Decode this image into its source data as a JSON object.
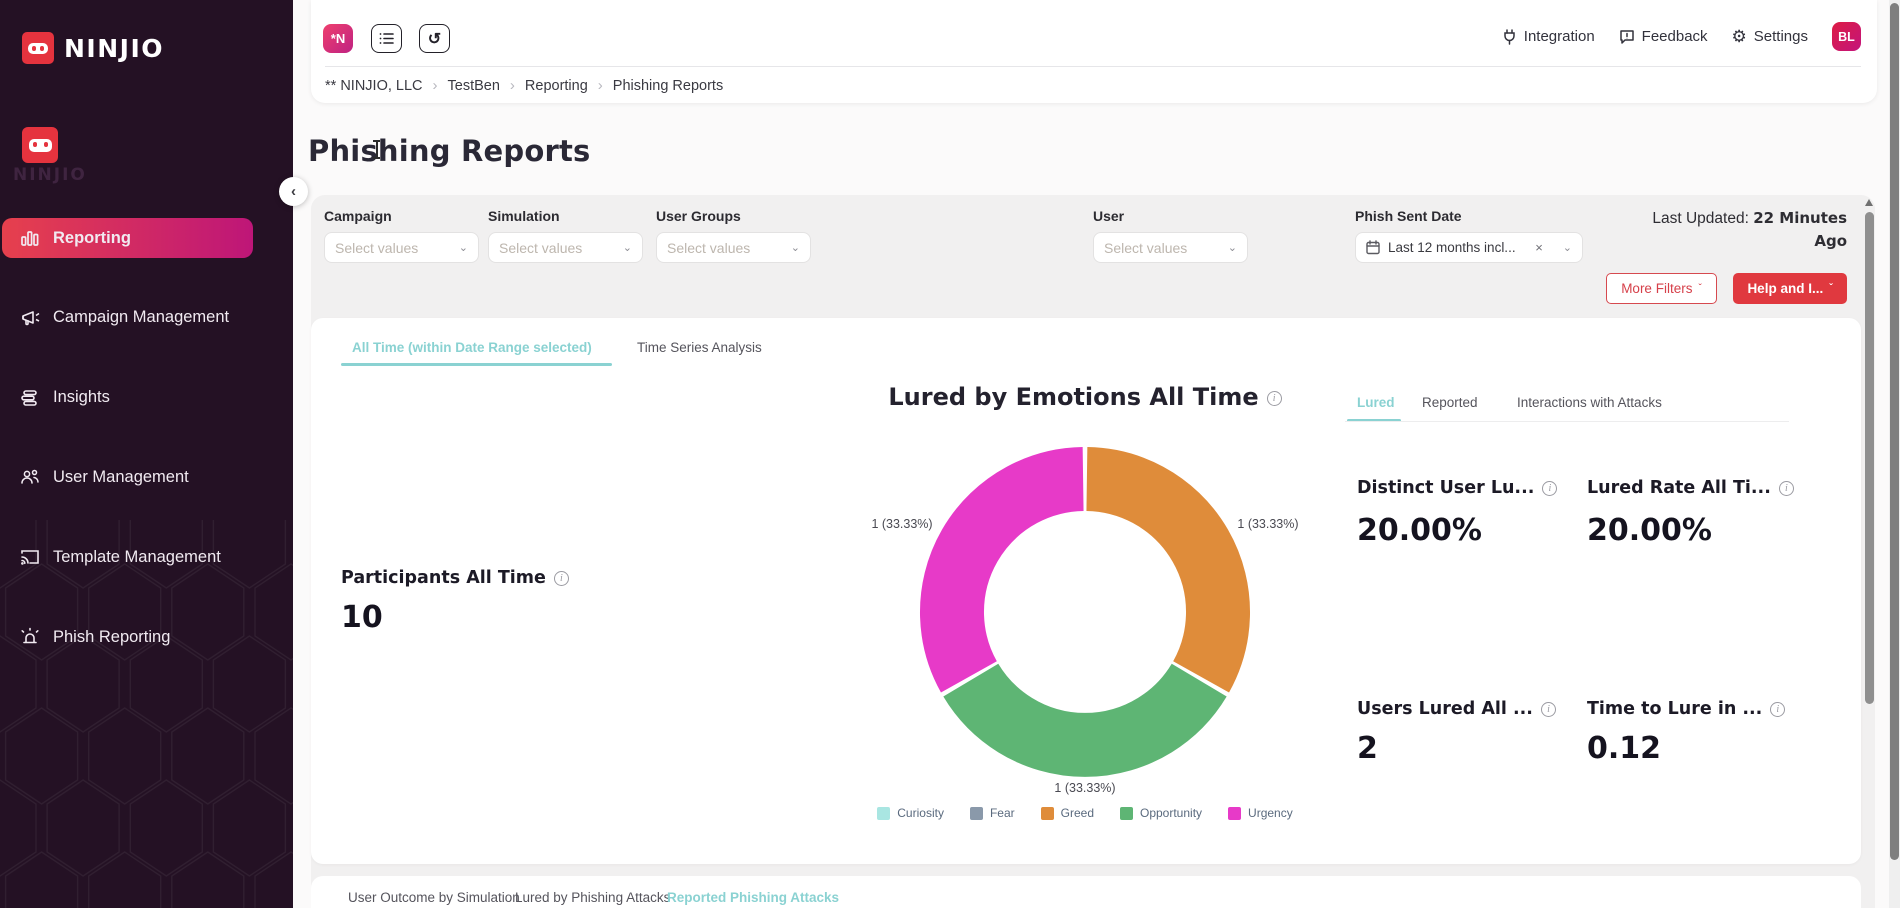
{
  "colors": {
    "accent_teal": "#8ad2d2",
    "brand_red": "#e5333e",
    "button_red": "#e0393f",
    "sidebar_bg": "#241124",
    "active_gradient": [
      "#e6404d",
      "#be1678"
    ]
  },
  "sidebar": {
    "brand": "NINJIO",
    "watermark": "NINJIO",
    "collapse_icon": "chevron-left-icon",
    "items": [
      {
        "label": "Reporting",
        "icon": "bar-chart-icon",
        "active": true
      },
      {
        "label": "Campaign Management",
        "icon": "megaphone-icon",
        "active": false
      },
      {
        "label": "Insights",
        "icon": "insights-icon",
        "active": false
      },
      {
        "label": "User Management",
        "icon": "users-icon",
        "active": false
      },
      {
        "label": "Template Management",
        "icon": "cast-icon",
        "active": false
      },
      {
        "label": "Phish Reporting",
        "icon": "siren-icon",
        "active": false
      }
    ]
  },
  "header": {
    "workspace_badge": "*N",
    "toolbar_icons": [
      "list-icon",
      "undo-icon"
    ],
    "breadcrumb": [
      "** NINJIO, LLC",
      "TestBen",
      "Reporting",
      "Phishing Reports"
    ],
    "actions": [
      {
        "label": "Integration",
        "icon": "plug-icon"
      },
      {
        "label": "Feedback",
        "icon": "feedback-icon"
      },
      {
        "label": "Settings",
        "icon": "gear-icon"
      }
    ],
    "avatar": "BL"
  },
  "page": {
    "title": "Phishing Reports"
  },
  "filters": {
    "fields": [
      {
        "label": "Campaign",
        "placeholder": "Select values"
      },
      {
        "label": "Simulation",
        "placeholder": "Select values"
      },
      {
        "label": "User Groups",
        "placeholder": "Select values"
      },
      {
        "label": "User",
        "placeholder": "Select values"
      },
      {
        "label": "Phish Sent Date",
        "value": "Last 12 months incl...",
        "icon": "calendar-icon",
        "clearable": true
      }
    ],
    "last_updated_prefix": "Last Updated:",
    "last_updated_value": "22 Minutes Ago",
    "more_filters_label": "More Filters",
    "help_label": "Help and I..."
  },
  "main_tabs": {
    "active_index": 0,
    "items": [
      "All Time (within Date Range selected)",
      "Time Series Analysis"
    ]
  },
  "participants": {
    "label": "Participants All Time",
    "value": "10"
  },
  "chart_data": {
    "type": "pie",
    "donut": true,
    "title": "Lured by Emotions All Time",
    "legend_position": "bottom",
    "categories": [
      "Curiosity",
      "Fear",
      "Greed",
      "Opportunity",
      "Urgency"
    ],
    "values": [
      0,
      0,
      1,
      1,
      1
    ],
    "colors": [
      "#a9e6e2",
      "#8a99aa",
      "#df8c3a",
      "#5eb574",
      "#e73ac8"
    ],
    "slice_labels": [
      "",
      "",
      "1 (33.33%)",
      "1 (33.33%)",
      "1 (33.33%)"
    ]
  },
  "right_panel": {
    "active_index": 0,
    "tabs": [
      "Lured",
      "Reported",
      "Interactions with Attacks"
    ],
    "metrics": [
      {
        "label": "Distinct User Lu...",
        "value": "20.00%"
      },
      {
        "label": "Lured Rate All Ti...",
        "value": "20.00%"
      },
      {
        "label": "Users Lured All ...",
        "value": "2"
      },
      {
        "label": "Time to Lure in ...",
        "value": "0.12"
      }
    ]
  },
  "bottom_tabs": {
    "active_index": 2,
    "items": [
      "User Outcome by Simulation",
      "Lured by Phishing Attacks",
      "Reported Phishing Attacks"
    ]
  }
}
